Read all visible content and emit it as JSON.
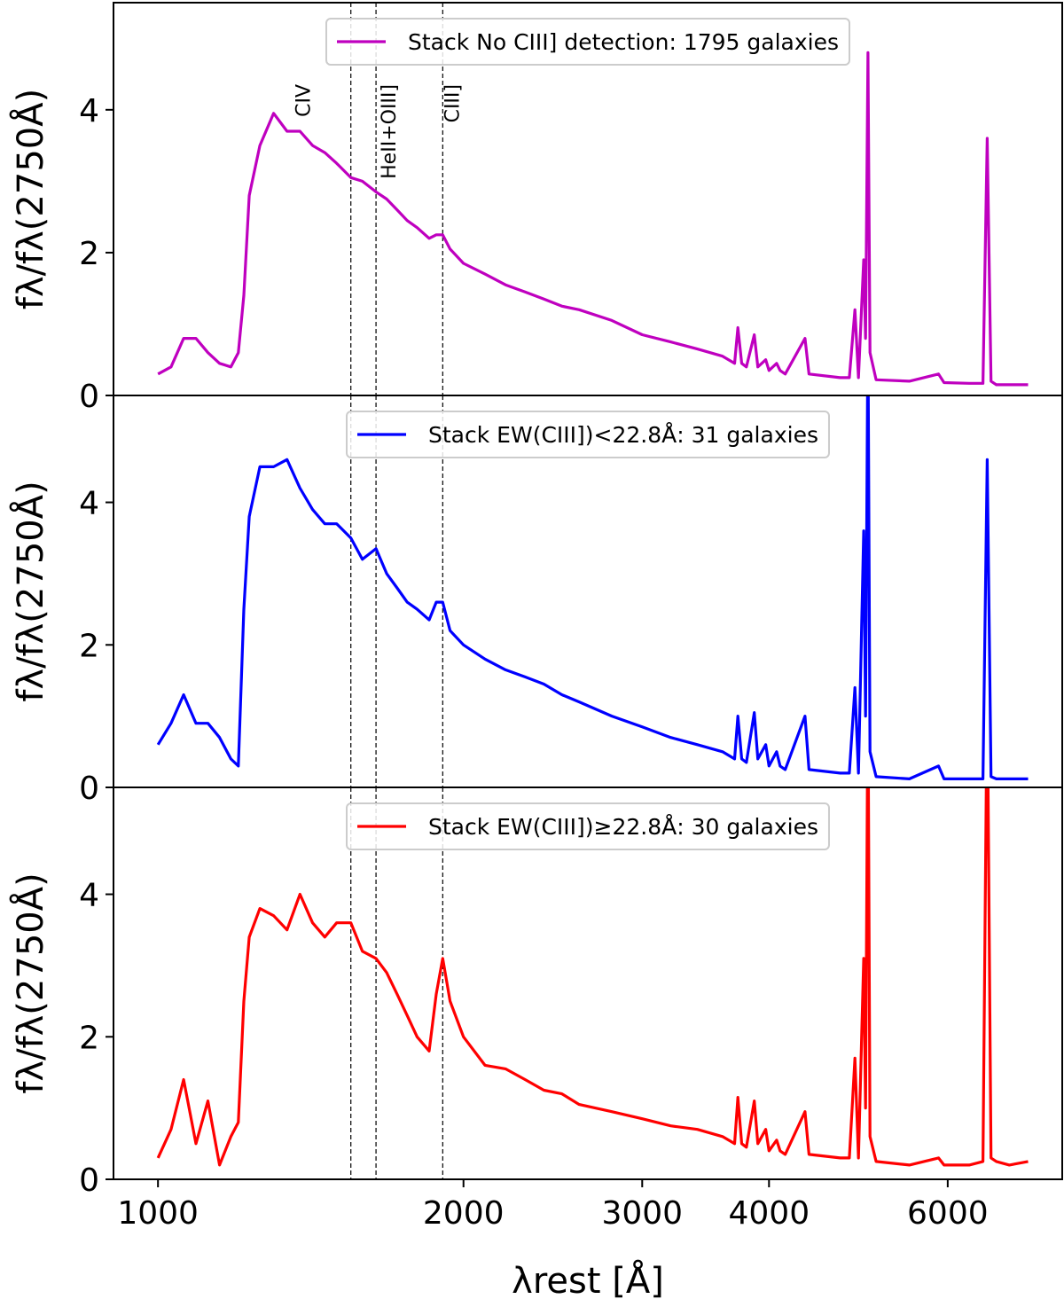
{
  "chart_data": [
    {
      "type": "line",
      "xscale": "log",
      "ylabel": "fλ/fλ(2750Å)",
      "legend": "upper center",
      "xlim": [
        904,
        7780
      ],
      "ylim": [
        0,
        5.5
      ],
      "yticks": [
        0,
        2,
        4
      ],
      "annotations": [
        {
          "x": 1549,
          "label": "CIV"
        },
        {
          "x": 1640,
          "label": "HeII+OIII]"
        },
        {
          "x": 1908,
          "label": "CIII]"
        }
      ],
      "x": [
        1000,
        1030,
        1060,
        1090,
        1120,
        1150,
        1180,
        1200,
        1215,
        1230,
        1260,
        1300,
        1340,
        1380,
        1420,
        1460,
        1500,
        1549,
        1590,
        1640,
        1680,
        1720,
        1760,
        1800,
        1850,
        1880,
        1908,
        1940,
        2000,
        2100,
        2200,
        2300,
        2400,
        2500,
        2600,
        2800,
        3000,
        3200,
        3400,
        3600,
        3700,
        3727,
        3760,
        3800,
        3869,
        3900,
        3970,
        4000,
        4070,
        4102,
        4150,
        4340,
        4380,
        4700,
        4800,
        4861,
        4900,
        4959,
        4980,
        5007,
        5030,
        5100,
        5500,
        5876,
        5950,
        6300,
        6500,
        6563,
        6620,
        6700,
        6900,
        7200
      ],
      "series": [
        {
          "name": "Stack No CIII] detection: 1795 galaxies",
          "color": "#bf00bf",
          "values": [
            0.3,
            0.4,
            0.8,
            0.8,
            0.6,
            0.45,
            0.4,
            0.6,
            1.4,
            2.8,
            3.5,
            3.95,
            3.7,
            3.7,
            3.5,
            3.4,
            3.25,
            3.05,
            3.0,
            2.85,
            2.75,
            2.6,
            2.45,
            2.35,
            2.2,
            2.25,
            2.25,
            2.05,
            1.85,
            1.7,
            1.55,
            1.45,
            1.35,
            1.25,
            1.2,
            1.05,
            0.85,
            0.75,
            0.65,
            0.55,
            0.45,
            0.95,
            0.45,
            0.4,
            0.85,
            0.4,
            0.5,
            0.35,
            0.45,
            0.35,
            0.3,
            0.8,
            0.3,
            0.25,
            0.25,
            1.2,
            0.25,
            1.9,
            0.8,
            4.8,
            0.6,
            0.22,
            0.2,
            0.3,
            0.18,
            0.17,
            0.17,
            3.6,
            0.2,
            0.15,
            0.15,
            0.15
          ]
        }
      ]
    },
    {
      "type": "line",
      "xscale": "log",
      "ylabel": "fλ/fλ(2750Å)",
      "legend": "upper center",
      "xlim": [
        904,
        7780
      ],
      "ylim": [
        0,
        5.5
      ],
      "yticks": [
        0,
        2,
        4
      ],
      "x": [
        1000,
        1030,
        1060,
        1090,
        1120,
        1150,
        1180,
        1200,
        1215,
        1230,
        1260,
        1300,
        1340,
        1380,
        1420,
        1460,
        1500,
        1549,
        1590,
        1640,
        1680,
        1720,
        1760,
        1800,
        1850,
        1880,
        1908,
        1940,
        2000,
        2100,
        2200,
        2300,
        2400,
        2500,
        2600,
        2800,
        3000,
        3200,
        3400,
        3600,
        3700,
        3727,
        3760,
        3800,
        3869,
        3900,
        3970,
        4000,
        4070,
        4102,
        4150,
        4340,
        4380,
        4700,
        4800,
        4861,
        4900,
        4959,
        4980,
        5007,
        5030,
        5100,
        5500,
        5876,
        5950,
        6300,
        6500,
        6563,
        6620,
        6700,
        6900,
        7200
      ],
      "series": [
        {
          "name": "Stack EW(CIII])<22.8Å: 31 galaxies",
          "color": "#0000ff",
          "values": [
            0.6,
            0.9,
            1.3,
            0.9,
            0.9,
            0.7,
            0.4,
            0.3,
            2.5,
            3.8,
            4.5,
            4.5,
            4.6,
            4.2,
            3.9,
            3.7,
            3.7,
            3.5,
            3.2,
            3.35,
            3.0,
            2.8,
            2.6,
            2.5,
            2.35,
            2.6,
            2.6,
            2.2,
            2.0,
            1.8,
            1.65,
            1.55,
            1.45,
            1.3,
            1.2,
            1.0,
            0.85,
            0.7,
            0.6,
            0.5,
            0.4,
            1.0,
            0.4,
            0.35,
            1.05,
            0.4,
            0.6,
            0.3,
            0.5,
            0.3,
            0.25,
            1.0,
            0.25,
            0.2,
            0.2,
            1.4,
            0.2,
            3.6,
            1.0,
            6.5,
            0.5,
            0.15,
            0.12,
            0.3,
            0.12,
            0.12,
            0.12,
            4.6,
            0.15,
            0.12,
            0.12,
            0.12
          ]
        }
      ]
    },
    {
      "type": "line",
      "xscale": "log",
      "ylabel": "fλ/fλ(2750Å)",
      "xlabel": "λrest [Å]",
      "legend": "upper center",
      "xlim": [
        904,
        7780
      ],
      "ylim": [
        0,
        5.5
      ],
      "yticks": [
        0,
        2,
        4
      ],
      "xticks": [
        1000,
        2000,
        3000,
        4000,
        6000
      ],
      "x": [
        1000,
        1030,
        1060,
        1090,
        1120,
        1150,
        1180,
        1200,
        1215,
        1230,
        1260,
        1300,
        1340,
        1380,
        1420,
        1460,
        1500,
        1549,
        1590,
        1640,
        1680,
        1720,
        1760,
        1800,
        1850,
        1880,
        1908,
        1940,
        2000,
        2100,
        2200,
        2300,
        2400,
        2500,
        2600,
        2800,
        3000,
        3200,
        3400,
        3600,
        3700,
        3727,
        3760,
        3800,
        3869,
        3900,
        3970,
        4000,
        4070,
        4102,
        4150,
        4340,
        4380,
        4700,
        4800,
        4861,
        4900,
        4959,
        4980,
        5007,
        5030,
        5100,
        5500,
        5876,
        5950,
        6300,
        6500,
        6563,
        6620,
        6700,
        6900,
        7200
      ],
      "series": [
        {
          "name": "Stack EW(CIII])≥22.8Å: 30 galaxies",
          "color": "#ff0000",
          "values": [
            0.3,
            0.7,
            1.4,
            0.5,
            1.1,
            0.2,
            0.6,
            0.8,
            2.5,
            3.4,
            3.8,
            3.7,
            3.5,
            4.0,
            3.6,
            3.4,
            3.6,
            3.6,
            3.2,
            3.1,
            2.9,
            2.6,
            2.3,
            2.0,
            1.8,
            2.6,
            3.1,
            2.5,
            2.0,
            1.6,
            1.55,
            1.4,
            1.25,
            1.2,
            1.05,
            0.95,
            0.85,
            0.75,
            0.7,
            0.6,
            0.5,
            1.15,
            0.5,
            0.45,
            1.1,
            0.5,
            0.7,
            0.4,
            0.55,
            0.4,
            0.35,
            0.95,
            0.35,
            0.3,
            0.3,
            1.7,
            0.3,
            3.1,
            1.0,
            7,
            0.6,
            0.25,
            0.2,
            0.3,
            0.2,
            0.2,
            0.25,
            7,
            0.3,
            0.25,
            0.2,
            0.25
          ]
        }
      ]
    }
  ]
}
